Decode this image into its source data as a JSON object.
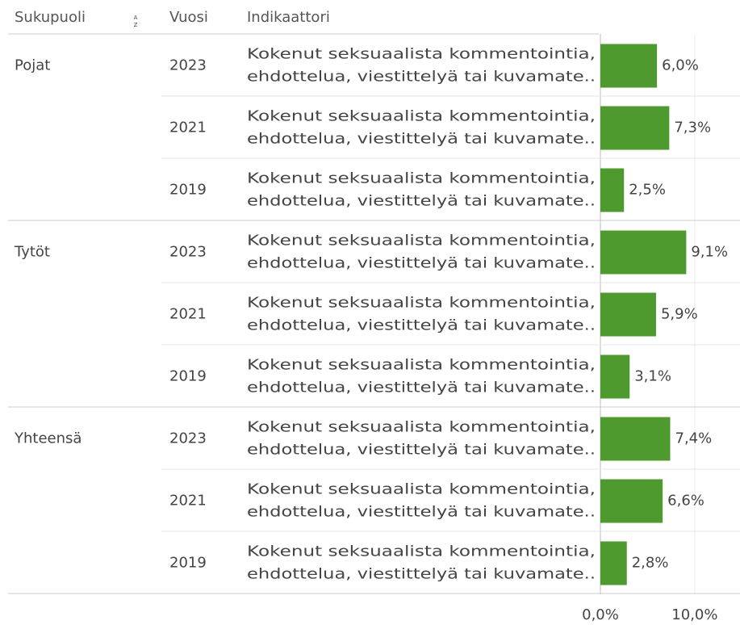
{
  "chart_data": {
    "type": "bar",
    "headers": [
      "Sukupuoli",
      "Vuosi",
      "Indikaattori"
    ],
    "groups": [
      "Pojat",
      "Tytöt",
      "Yhteensä"
    ],
    "categories": [
      "2023",
      "2021",
      "2019",
      "2023",
      "2021",
      "2019",
      "2023",
      "2021",
      "2019"
    ],
    "indicator": [
      "Kokenut seksuaalista kommentointia,",
      "ehdottelua, viestittelyä tai kuvamate.."
    ],
    "values": [
      6.0,
      7.3,
      2.5,
      9.1,
      5.9,
      3.1,
      7.4,
      6.6,
      2.8
    ],
    "value_labels": [
      "6,0%",
      "7,3%",
      "2,5%",
      "9,1%",
      "5,9%",
      "3,1%",
      "7,4%",
      "6,6%",
      "2,8%"
    ],
    "color": "#4e9a2e",
    "xlim": [
      0,
      14.8
    ],
    "xticks": [
      {
        "value": 0,
        "label": "0,0%"
      },
      {
        "value": 10,
        "label": "10,0%"
      }
    ],
    "grid": true
  }
}
